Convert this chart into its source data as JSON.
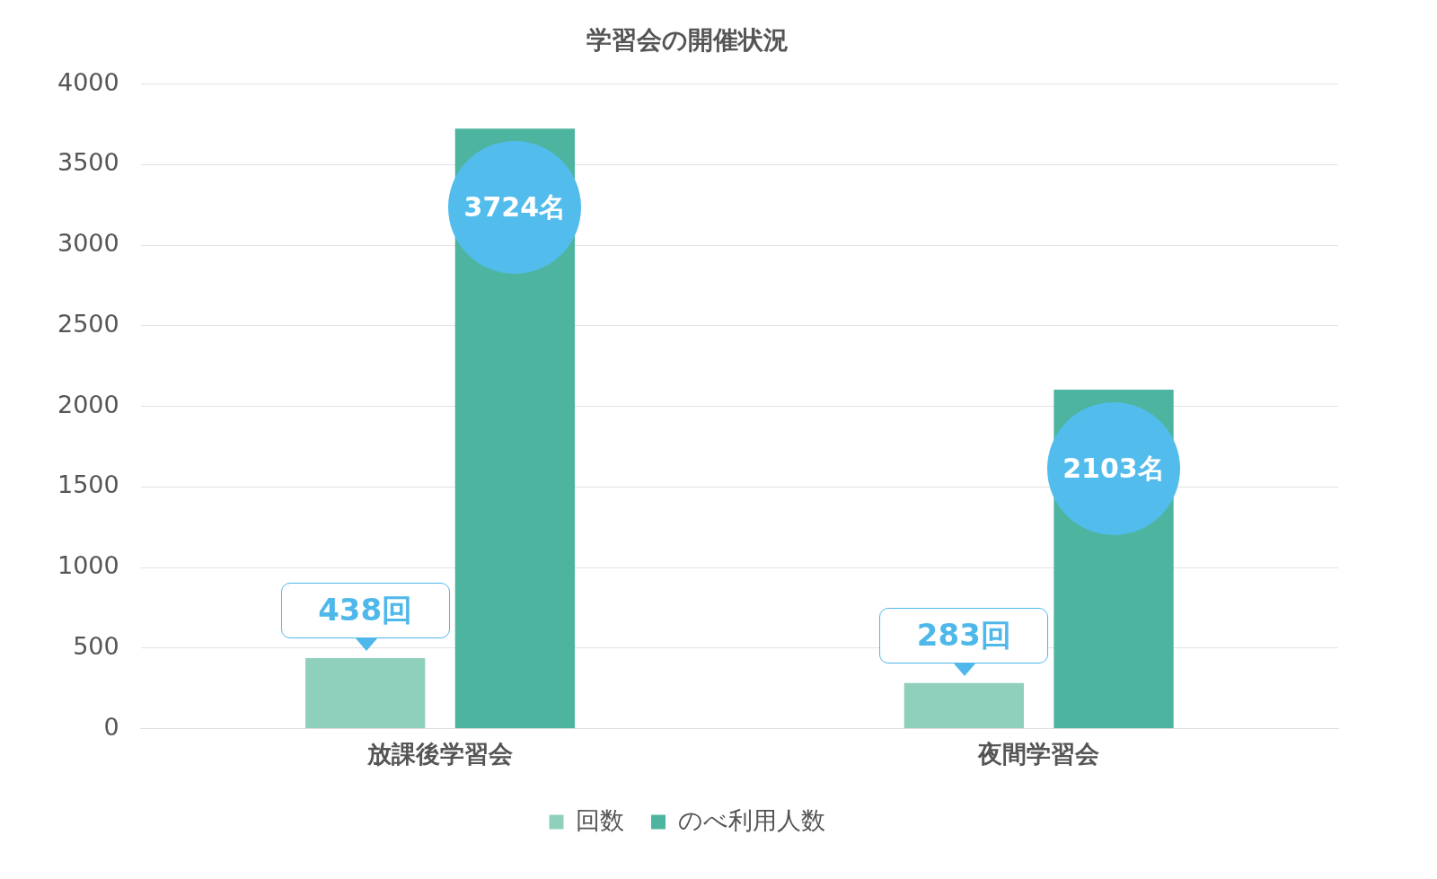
{
  "chart_data": {
    "type": "bar",
    "title": "学習会の開催状況",
    "categories": [
      "放課後学習会",
      "夜間学習会"
    ],
    "series": [
      {
        "name": "回数",
        "color": "#8fd0bd",
        "values": [
          438,
          283
        ],
        "value_labels": [
          "438回",
          "283回"
        ]
      },
      {
        "name": "のべ利用人数",
        "color": "#4db59f",
        "values": [
          3724,
          2103
        ],
        "value_labels": [
          "3724名",
          "2103名"
        ]
      }
    ],
    "ylim": [
      0,
      4000
    ],
    "yticks": [
      0,
      500,
      1000,
      1500,
      2000,
      2500,
      3000,
      3500,
      4000
    ],
    "grid": "y",
    "legend": "bottom"
  }
}
